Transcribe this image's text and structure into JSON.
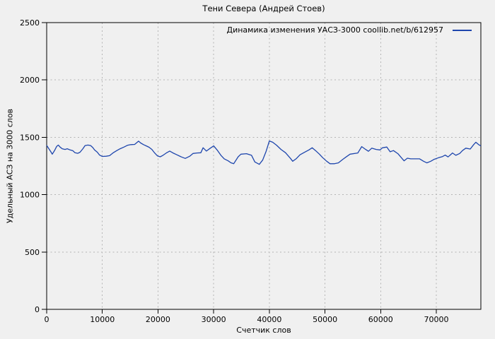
{
  "window": {
    "title": "Тени Севера (Андрей Стоев)"
  },
  "colors": {
    "background": "#f0f0f0",
    "line": "#1e46ad",
    "grid": "#b4b4b4",
    "border": "#000000",
    "text": "#000000"
  },
  "chart_data": {
    "type": "line",
    "title": "Тени Севера (Андрей Стоев)",
    "xlabel": "Счетчик слов",
    "ylabel": "Удельный АСЗ на 3000 слов",
    "legend": {
      "label": "Динамика изменения УАСЗ-3000 coollib.net/b/612957",
      "position": "top-right"
    },
    "grid": true,
    "grid_style": "dashed",
    "xlim": [
      0,
      78000
    ],
    "ylim": [
      0,
      2500
    ],
    "xticks": [
      0,
      10000,
      20000,
      30000,
      40000,
      50000,
      60000,
      70000
    ],
    "yticks": [
      0,
      500,
      1000,
      1500,
      2000,
      2500
    ],
    "series": [
      {
        "name": "Динамика изменения УАСЗ-3000 coollib.net/b/612957",
        "color": "#1e46ad",
        "points": [
          [
            0,
            1430
          ],
          [
            400,
            1400
          ],
          [
            800,
            1370
          ],
          [
            1000,
            1353
          ],
          [
            1400,
            1383
          ],
          [
            1800,
            1421
          ],
          [
            2100,
            1432
          ],
          [
            2400,
            1415
          ],
          [
            2800,
            1400
          ],
          [
            3300,
            1394
          ],
          [
            3700,
            1400
          ],
          [
            4200,
            1390
          ],
          [
            4700,
            1383
          ],
          [
            5100,
            1365
          ],
          [
            5600,
            1360
          ],
          [
            6000,
            1370
          ],
          [
            6500,
            1400
          ],
          [
            6900,
            1428
          ],
          [
            7400,
            1432
          ],
          [
            7900,
            1428
          ],
          [
            8300,
            1410
          ],
          [
            8600,
            1390
          ],
          [
            9100,
            1370
          ],
          [
            9500,
            1345
          ],
          [
            10000,
            1333
          ],
          [
            10700,
            1335
          ],
          [
            11300,
            1340
          ],
          [
            11900,
            1363
          ],
          [
            12600,
            1384
          ],
          [
            13200,
            1400
          ],
          [
            13900,
            1415
          ],
          [
            14500,
            1430
          ],
          [
            15100,
            1436
          ],
          [
            15800,
            1438
          ],
          [
            16500,
            1466
          ],
          [
            16900,
            1450
          ],
          [
            17400,
            1436
          ],
          [
            17900,
            1425
          ],
          [
            18400,
            1413
          ],
          [
            18900,
            1394
          ],
          [
            19400,
            1363
          ],
          [
            19900,
            1338
          ],
          [
            20400,
            1330
          ],
          [
            20900,
            1343
          ],
          [
            21500,
            1363
          ],
          [
            22100,
            1380
          ],
          [
            22700,
            1363
          ],
          [
            23300,
            1350
          ],
          [
            24200,
            1329
          ],
          [
            24900,
            1316
          ],
          [
            25700,
            1335
          ],
          [
            26300,
            1359
          ],
          [
            27000,
            1363
          ],
          [
            27700,
            1365
          ],
          [
            28100,
            1409
          ],
          [
            28700,
            1380
          ],
          [
            29400,
            1405
          ],
          [
            30000,
            1425
          ],
          [
            30700,
            1384
          ],
          [
            31300,
            1343
          ],
          [
            31900,
            1312
          ],
          [
            32600,
            1295
          ],
          [
            33100,
            1278
          ],
          [
            33600,
            1270
          ],
          [
            34400,
            1330
          ],
          [
            34900,
            1353
          ],
          [
            35900,
            1357
          ],
          [
            36800,
            1343
          ],
          [
            37400,
            1285
          ],
          [
            38200,
            1264
          ],
          [
            38800,
            1301
          ],
          [
            39400,
            1374
          ],
          [
            40000,
            1468
          ],
          [
            40600,
            1457
          ],
          [
            41300,
            1431
          ],
          [
            42100,
            1394
          ],
          [
            42900,
            1366
          ],
          [
            43800,
            1316
          ],
          [
            44200,
            1291
          ],
          [
            44800,
            1312
          ],
          [
            45500,
            1347
          ],
          [
            46300,
            1369
          ],
          [
            47100,
            1390
          ],
          [
            47700,
            1409
          ],
          [
            48300,
            1384
          ],
          [
            49000,
            1353
          ],
          [
            49600,
            1322
          ],
          [
            50300,
            1291
          ],
          [
            50900,
            1270
          ],
          [
            51700,
            1270
          ],
          [
            52400,
            1277
          ],
          [
            53200,
            1308
          ],
          [
            53800,
            1329
          ],
          [
            54500,
            1353
          ],
          [
            55900,
            1363
          ],
          [
            56600,
            1419
          ],
          [
            57300,
            1394
          ],
          [
            57800,
            1378
          ],
          [
            58400,
            1405
          ],
          [
            59200,
            1394
          ],
          [
            59900,
            1390
          ],
          [
            60300,
            1408
          ],
          [
            61100,
            1415
          ],
          [
            61700,
            1374
          ],
          [
            62300,
            1384
          ],
          [
            63100,
            1357
          ],
          [
            63900,
            1312
          ],
          [
            64200,
            1295
          ],
          [
            64800,
            1318
          ],
          [
            65400,
            1312
          ],
          [
            67000,
            1312
          ],
          [
            67700,
            1291
          ],
          [
            68300,
            1277
          ],
          [
            69000,
            1291
          ],
          [
            69600,
            1308
          ],
          [
            70400,
            1322
          ],
          [
            71100,
            1332
          ],
          [
            71600,
            1345
          ],
          [
            72100,
            1329
          ],
          [
            72900,
            1363
          ],
          [
            73500,
            1343
          ],
          [
            74200,
            1359
          ],
          [
            74700,
            1384
          ],
          [
            75300,
            1405
          ],
          [
            76100,
            1398
          ],
          [
            76700,
            1436
          ],
          [
            77100,
            1457
          ],
          [
            77600,
            1436
          ],
          [
            78000,
            1425
          ]
        ]
      }
    ]
  }
}
